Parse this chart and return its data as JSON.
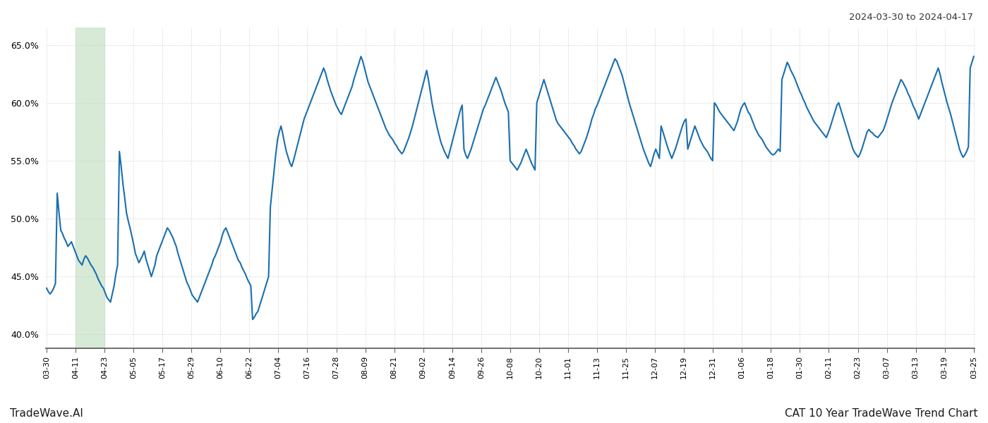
{
  "title_top_right": "2024-03-30 to 2024-04-17",
  "title_bottom_right": "CAT 10 Year TradeWave Trend Chart",
  "title_bottom_left": "TradeWave.AI",
  "background_color": "#ffffff",
  "line_color": "#1a6faf",
  "line_width": 1.5,
  "highlight_color": "#d6ead6",
  "ylim": [
    0.388,
    0.665
  ],
  "yticks": [
    0.4,
    0.45,
    0.5,
    0.55,
    0.6,
    0.65
  ],
  "x_labels": [
    "03-30",
    "04-11",
    "04-23",
    "05-05",
    "05-17",
    "05-29",
    "06-10",
    "06-22",
    "07-04",
    "07-16",
    "07-28",
    "08-09",
    "08-21",
    "09-02",
    "09-14",
    "09-26",
    "10-08",
    "10-20",
    "11-01",
    "11-13",
    "11-25",
    "12-07",
    "12-19",
    "12-31",
    "01-06",
    "01-18",
    "01-30",
    "02-11",
    "02-23",
    "03-07",
    "03-13",
    "03-19",
    "03-25"
  ],
  "y_values": [
    0.44,
    0.437,
    0.435,
    0.437,
    0.44,
    0.444,
    0.522,
    0.505,
    0.49,
    0.487,
    0.483,
    0.48,
    0.476,
    0.478,
    0.48,
    0.476,
    0.472,
    0.468,
    0.464,
    0.462,
    0.46,
    0.465,
    0.468,
    0.466,
    0.463,
    0.46,
    0.458,
    0.455,
    0.452,
    0.448,
    0.445,
    0.442,
    0.44,
    0.436,
    0.432,
    0.43,
    0.428,
    0.435,
    0.442,
    0.452,
    0.46,
    0.558,
    0.545,
    0.53,
    0.518,
    0.505,
    0.498,
    0.492,
    0.485,
    0.478,
    0.47,
    0.466,
    0.462,
    0.465,
    0.468,
    0.472,
    0.465,
    0.46,
    0.455,
    0.45,
    0.455,
    0.46,
    0.468,
    0.472,
    0.476,
    0.48,
    0.484,
    0.488,
    0.492,
    0.49,
    0.487,
    0.484,
    0.48,
    0.476,
    0.47,
    0.465,
    0.46,
    0.455,
    0.45,
    0.445,
    0.442,
    0.438,
    0.434,
    0.432,
    0.43,
    0.428,
    0.432,
    0.436,
    0.44,
    0.444,
    0.448,
    0.452,
    0.456,
    0.46,
    0.465,
    0.468,
    0.472,
    0.476,
    0.48,
    0.486,
    0.49,
    0.492,
    0.488,
    0.484,
    0.48,
    0.476,
    0.472,
    0.468,
    0.464,
    0.462,
    0.458,
    0.455,
    0.452,
    0.448,
    0.445,
    0.442,
    0.413,
    0.415,
    0.418,
    0.42,
    0.425,
    0.43,
    0.435,
    0.44,
    0.445,
    0.45,
    0.51,
    0.525,
    0.54,
    0.555,
    0.568,
    0.575,
    0.58,
    0.573,
    0.565,
    0.558,
    0.553,
    0.548,
    0.545,
    0.55,
    0.556,
    0.562,
    0.568,
    0.574,
    0.58,
    0.586,
    0.59,
    0.594,
    0.598,
    0.602,
    0.606,
    0.61,
    0.614,
    0.618,
    0.622,
    0.626,
    0.63,
    0.626,
    0.62,
    0.615,
    0.61,
    0.606,
    0.602,
    0.598,
    0.595,
    0.592,
    0.59,
    0.594,
    0.598,
    0.602,
    0.606,
    0.61,
    0.614,
    0.62,
    0.625,
    0.63,
    0.635,
    0.64,
    0.636,
    0.63,
    0.624,
    0.618,
    0.614,
    0.61,
    0.606,
    0.602,
    0.598,
    0.594,
    0.59,
    0.586,
    0.582,
    0.578,
    0.575,
    0.572,
    0.57,
    0.568,
    0.565,
    0.563,
    0.56,
    0.558,
    0.556,
    0.558,
    0.562,
    0.566,
    0.57,
    0.575,
    0.58,
    0.586,
    0.592,
    0.598,
    0.604,
    0.61,
    0.616,
    0.622,
    0.628,
    0.62,
    0.61,
    0.6,
    0.592,
    0.585,
    0.578,
    0.572,
    0.566,
    0.562,
    0.558,
    0.555,
    0.552,
    0.558,
    0.564,
    0.57,
    0.576,
    0.582,
    0.588,
    0.594,
    0.598,
    0.56,
    0.555,
    0.552,
    0.556,
    0.56,
    0.565,
    0.57,
    0.575,
    0.58,
    0.585,
    0.59,
    0.595,
    0.598,
    0.602,
    0.606,
    0.61,
    0.614,
    0.618,
    0.622,
    0.618,
    0.614,
    0.61,
    0.605,
    0.6,
    0.596,
    0.592,
    0.55,
    0.548,
    0.546,
    0.544,
    0.542,
    0.545,
    0.548,
    0.552,
    0.556,
    0.56,
    0.556,
    0.552,
    0.548,
    0.545,
    0.542,
    0.6,
    0.605,
    0.61,
    0.615,
    0.62,
    0.615,
    0.61,
    0.605,
    0.6,
    0.595,
    0.59,
    0.585,
    0.582,
    0.58,
    0.578,
    0.576,
    0.574,
    0.572,
    0.57,
    0.568,
    0.565,
    0.563,
    0.56,
    0.558,
    0.556,
    0.558,
    0.562,
    0.566,
    0.57,
    0.575,
    0.58,
    0.586,
    0.59,
    0.595,
    0.598,
    0.602,
    0.606,
    0.61,
    0.614,
    0.618,
    0.622,
    0.626,
    0.63,
    0.634,
    0.638,
    0.636,
    0.632,
    0.628,
    0.624,
    0.618,
    0.612,
    0.606,
    0.6,
    0.595,
    0.59,
    0.585,
    0.58,
    0.575,
    0.57,
    0.565,
    0.56,
    0.556,
    0.552,
    0.548,
    0.545,
    0.55,
    0.556,
    0.56,
    0.556,
    0.552,
    0.58,
    0.575,
    0.57,
    0.565,
    0.56,
    0.556,
    0.552,
    0.556,
    0.56,
    0.565,
    0.57,
    0.575,
    0.58,
    0.584,
    0.586,
    0.56,
    0.565,
    0.57,
    0.575,
    0.58,
    0.576,
    0.572,
    0.568,
    0.565,
    0.562,
    0.56,
    0.558,
    0.555,
    0.552,
    0.55,
    0.6,
    0.598,
    0.595,
    0.592,
    0.59,
    0.588,
    0.586,
    0.584,
    0.582,
    0.58,
    0.578,
    0.576,
    0.58,
    0.584,
    0.59,
    0.595,
    0.598,
    0.6,
    0.596,
    0.592,
    0.59,
    0.586,
    0.582,
    0.578,
    0.575,
    0.572,
    0.57,
    0.568,
    0.565,
    0.562,
    0.56,
    0.558,
    0.556,
    0.555,
    0.556,
    0.558,
    0.56,
    0.558,
    0.62,
    0.625,
    0.63,
    0.635,
    0.632,
    0.628,
    0.625,
    0.622,
    0.618,
    0.614,
    0.61,
    0.607,
    0.603,
    0.6,
    0.596,
    0.593,
    0.59,
    0.587,
    0.584,
    0.582,
    0.58,
    0.578,
    0.576,
    0.574,
    0.572,
    0.57,
    0.574,
    0.578,
    0.583,
    0.588,
    0.593,
    0.598,
    0.6,
    0.595,
    0.59,
    0.585,
    0.58,
    0.575,
    0.57,
    0.565,
    0.56,
    0.557,
    0.555,
    0.553,
    0.556,
    0.56,
    0.565,
    0.57,
    0.575,
    0.577,
    0.575,
    0.574,
    0.572,
    0.571,
    0.57,
    0.572,
    0.574,
    0.576,
    0.58,
    0.585,
    0.59,
    0.595,
    0.6,
    0.604,
    0.608,
    0.612,
    0.616,
    0.62,
    0.618,
    0.615,
    0.612,
    0.608,
    0.605,
    0.601,
    0.597,
    0.594,
    0.59,
    0.586,
    0.59,
    0.594,
    0.598,
    0.602,
    0.606,
    0.61,
    0.614,
    0.618,
    0.622,
    0.626,
    0.63,
    0.625,
    0.618,
    0.612,
    0.606,
    0.6,
    0.595,
    0.59,
    0.584,
    0.578,
    0.572,
    0.566,
    0.56,
    0.556,
    0.553,
    0.555,
    0.558,
    0.562,
    0.63,
    0.635,
    0.64
  ],
  "highlight_x_start_label": "04-11",
  "highlight_x_end_label": "04-17",
  "grid_color": "#cccccc"
}
